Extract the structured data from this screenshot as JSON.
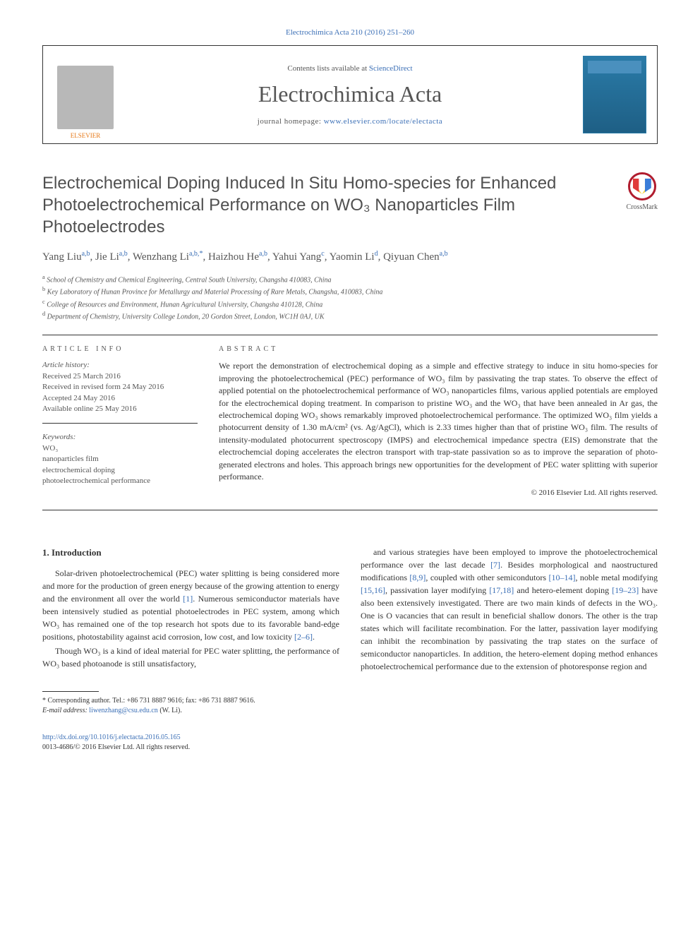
{
  "citation": "Electrochimica Acta 210 (2016) 251–260",
  "header": {
    "contents_prefix": "Contents lists available at ",
    "contents_link": "ScienceDirect",
    "journal": "Electrochimica Acta",
    "homepage_prefix": "journal homepage: ",
    "homepage_link": "www.elsevier.com/locate/electacta",
    "publisher_logo": "ELSEVIER"
  },
  "crossmark": "CrossMark",
  "title": "Electrochemical Doping Induced In Situ Homo-species for Enhanced Photoelectrochemical Performance on WO₃ Nanoparticles Film Photoelectrodes",
  "authors_html": "Yang Liu<sup>a,b</sup>, Jie Li<sup>a,b</sup>, Wenzhang Li<sup>a,b,</sup><sup class='star'>*</sup>, Haizhou He<sup>a,b</sup>, Yahui Yang<sup>c</sup>, Yaomin Li<sup>d</sup>, Qiyuan Chen<sup>a,b</sup>",
  "affiliations": [
    {
      "key": "a",
      "text": "School of Chemistry and Chemical Engineering, Central South University, Changsha 410083, China"
    },
    {
      "key": "b",
      "text": "Key Laboratory of Hunan Province for Metallurgy and Material Processing of Rare Metals, Changsha, 410083, China"
    },
    {
      "key": "c",
      "text": "College of Resources and Environment, Hunan Agricultural University, Changsha 410128, China"
    },
    {
      "key": "d",
      "text": "Department of Chemistry, University College London, 20 Gordon Street, London, WC1H 0AJ, UK"
    }
  ],
  "info": {
    "heading": "ARTICLE INFO",
    "history_label": "Article history:",
    "history": [
      "Received 25 March 2016",
      "Received in revised form 24 May 2016",
      "Accepted 24 May 2016",
      "Available online 25 May 2016"
    ],
    "keywords_label": "Keywords:",
    "keywords": [
      "WO₃",
      "nanoparticles film",
      "electrochemical doping",
      "photoelectrochemical performance"
    ]
  },
  "abstract": {
    "heading": "ABSTRACT",
    "text": "We report the demonstration of electrochemical doping as a simple and effective strategy to induce in situ homo-species for improving the photoelectrochemical (PEC) performance of WO₃ film by passivating the trap states. To observe the effect of applied potential on the photoelectrochemical performance of WO₃ nanoparticles films, various applied potentials are employed for the electrochemical doping treatment. In comparison to pristine WO₃ and the WO₃ that have been annealed in Ar gas, the electrochemical doping WO₃ shows remarkably improved photoelectrochemical performance. The optimized WO₃ film yields a photocurrent density of 1.30 mA/cm² (vs. Ag/AgCl), which is 2.33 times higher than that of pristine WO₃ film. The results of intensity-modulated photocurrent spectroscopy (IMPS) and electrochemical impedance spectra (EIS) demonstrate that the electrochemcial doping accelerates the electron transport with trap-state passivation so as to improve the separation of photo-generated electrons and holes. This approach brings new opportunities for the development of PEC water splitting with superior performance.",
    "copyright": "© 2016 Elsevier Ltd. All rights reserved."
  },
  "body": {
    "intro_heading": "1. Introduction",
    "left_paras": [
      "Solar-driven photoelectrochemical (PEC) water splitting is being considered more and more for the production of green energy because of the growing attention to energy and the environment all over the world <a href='#'>[1]</a>. Numerous semiconductor materials have been intensively studied as potential photoelectrodes in PEC system, among which WO₃ has remained one of the top research hot spots due to its favorable band-edge positions, photostability against acid corrosion, low cost, and low toxicity <a href='#'>[2–6]</a>.",
      "Though WO₃ is a kind of ideal material for PEC water splitting, the performance of WO₃ based photoanode is still unsatisfactory,"
    ],
    "right_paras": [
      "and various strategies have been employed to improve the photoelectrochemical performance over the last decade <a href='#'>[7]</a>. Besides morphological and naostructured modifications <a href='#'>[8,9]</a>, coupled with other semicondutors <a href='#'>[10–14]</a>, noble metal modifying <a href='#'>[15,16]</a>, passivation layer modifying <a href='#'>[17,18]</a> and hetero-element doping <a href='#'>[19–23]</a> have also been extensively investigated. There are two main kinds of defects in the WO₃. One is O vacancies that can result in beneficial shallow donors. The other is the trap states which will facilitate recombination. For the latter, passivation layer modifying can inhibit the recombination by passivating the trap states on the surface of semiconductor nanoparticles. In addition, the hetero-element doping method enhances photoelectrochemical performance due to the extension of photoresponse region and"
    ]
  },
  "footnote": {
    "corr": "* Corresponding author. Tel.: +86 731 8887 9616; fax: +86 731 8887 9616.",
    "email_label": "E-mail address: ",
    "email": "liwenzhang@csu.edu.cn",
    "email_suffix": " (W. Li)."
  },
  "doi": {
    "url": "http://dx.doi.org/10.1016/j.electacta.2016.05.165",
    "issn_line": "0013-4686/© 2016 Elsevier Ltd. All rights reserved."
  },
  "colors": {
    "link": "#3b6fb6",
    "elsevier_orange": "#e67817",
    "text": "#333333",
    "muted": "#555555",
    "cover_bg": "#2a7ba8"
  }
}
